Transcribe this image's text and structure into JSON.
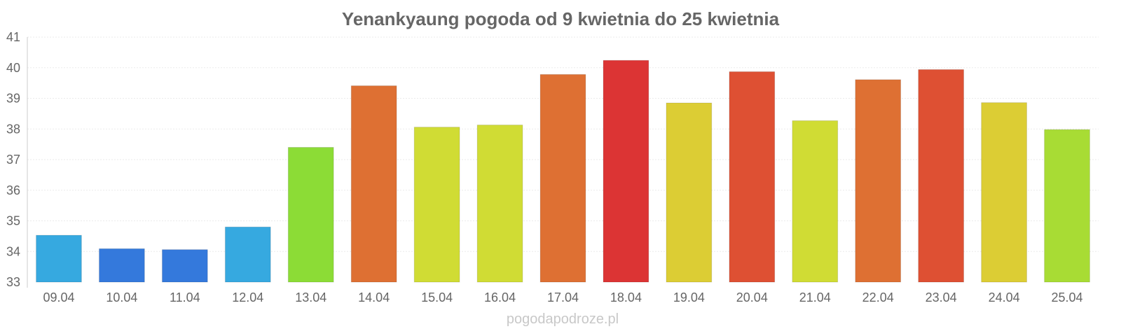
{
  "chart_data": {
    "type": "bar",
    "title": "Yenankyaung pogoda od 9 kwietnia do 25 kwietnia",
    "xlabel": "",
    "ylabel": "",
    "ylim": [
      33,
      41
    ],
    "yticks": [
      "33",
      "34",
      "35",
      "36",
      "37",
      "38",
      "39",
      "40",
      "41"
    ],
    "categories": [
      "09.04",
      "10.04",
      "11.04",
      "12.04",
      "13.04",
      "14.04",
      "15.04",
      "16.04",
      "17.04",
      "18.04",
      "19.04",
      "20.04",
      "21.04",
      "22.04",
      "23.04",
      "24.04",
      "25.04"
    ],
    "values": [
      34.53,
      34.09,
      34.06,
      34.8,
      37.4,
      39.41,
      38.06,
      38.13,
      39.78,
      40.24,
      38.85,
      39.87,
      38.27,
      39.61,
      39.94,
      38.86,
      37.98
    ],
    "colors": [
      "#36a9e0",
      "#3479dc",
      "#3479dc",
      "#36a9e0",
      "#8cdc36",
      "#de7033",
      "#d0dc34",
      "#d0dc34",
      "#de7033",
      "#dc3434",
      "#dccd34",
      "#de5033",
      "#d0dc34",
      "#de7033",
      "#de5033",
      "#dccd34",
      "#a8dc34"
    ],
    "grid": true,
    "legend": "none"
  },
  "footer": {
    "watermark": "pogodapodroze.pl"
  }
}
